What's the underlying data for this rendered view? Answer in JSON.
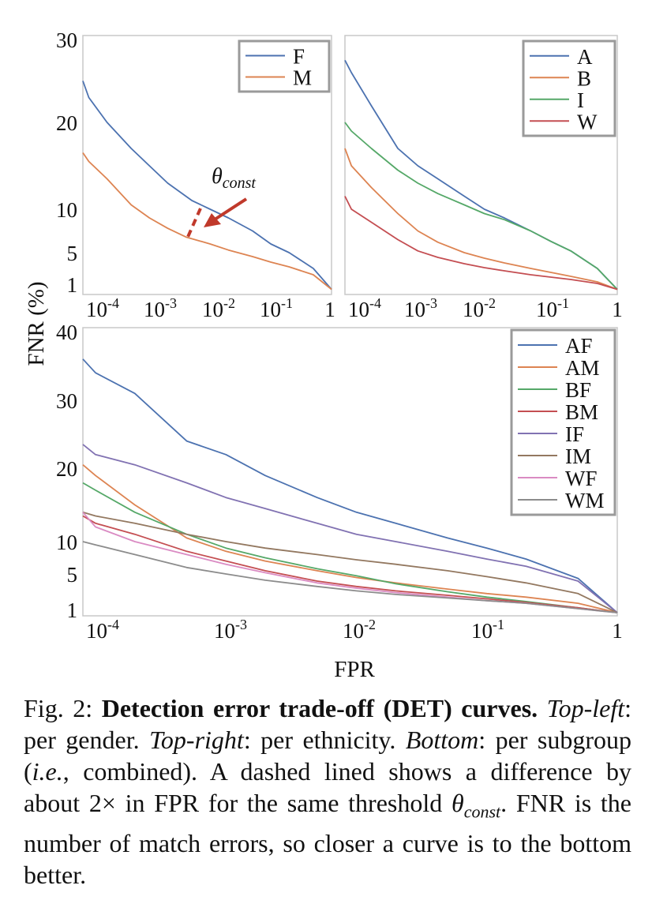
{
  "y_axis_label": "FNR (%)",
  "x_axis_label": "FPR",
  "annotation_theta": "θ",
  "annotation_sub": "const",
  "chart_data": [
    {
      "type": "line",
      "panel": "top-left",
      "xscale": "log",
      "xlim": [
        8e-05,
        1
      ],
      "ylim": [
        0,
        30
      ],
      "yticks": [
        1,
        5,
        10,
        20,
        30
      ],
      "xticks": [
        "10-4",
        "10-3",
        "10-2",
        "10-1",
        "1"
      ],
      "legend_position": "top-right",
      "series": [
        {
          "name": "F",
          "color": "#4c72b0",
          "x": [
            8e-05,
            0.0001,
            0.0002,
            0.0005,
            0.001,
            0.002,
            0.005,
            0.01,
            0.02,
            0.05,
            0.1,
            0.2,
            0.5,
            1
          ],
          "y": [
            25,
            23,
            20,
            17,
            15,
            13,
            11,
            10,
            9,
            7.5,
            6,
            5,
            3,
            0.5
          ]
        },
        {
          "name": "M",
          "color": "#dd8452",
          "x": [
            8e-05,
            0.0001,
            0.0002,
            0.0005,
            0.001,
            0.002,
            0.004,
            0.01,
            0.02,
            0.05,
            0.1,
            0.2,
            0.5,
            1
          ],
          "y": [
            16.5,
            15.5,
            13.5,
            10.5,
            9,
            7.8,
            6.8,
            6,
            5.3,
            4.5,
            3.8,
            3.2,
            2.2,
            0.5
          ]
        }
      ]
    },
    {
      "type": "line",
      "panel": "top-right",
      "xscale": "log",
      "xlim": [
        8e-05,
        1
      ],
      "ylim": [
        0,
        30
      ],
      "xticks": [
        "10-4",
        "10-3",
        "10-2",
        "10-1",
        "1"
      ],
      "legend_position": "top-right",
      "series": [
        {
          "name": "A",
          "color": "#4c72b0",
          "x": [
            8e-05,
            0.0001,
            0.0002,
            0.0005,
            0.001,
            0.002,
            0.005,
            0.01,
            0.02,
            0.05,
            0.1,
            0.2,
            0.5,
            1
          ],
          "y": [
            27.5,
            26,
            22,
            17,
            15,
            13.5,
            11.5,
            10,
            9,
            7.5,
            6.3,
            5.2,
            3,
            0.5
          ]
        },
        {
          "name": "B",
          "color": "#dd8452",
          "x": [
            8e-05,
            0.0001,
            0.0002,
            0.0005,
            0.001,
            0.002,
            0.005,
            0.01,
            0.02,
            0.05,
            0.1,
            0.2,
            0.5,
            1
          ],
          "y": [
            17,
            15,
            12.5,
            9.5,
            7.5,
            6.2,
            5,
            4.3,
            3.7,
            3,
            2.5,
            2,
            1.3,
            0.5
          ]
        },
        {
          "name": "I",
          "color": "#55a868",
          "x": [
            8e-05,
            0.0001,
            0.0002,
            0.0005,
            0.001,
            0.002,
            0.005,
            0.01,
            0.02,
            0.05,
            0.1,
            0.2,
            0.5,
            1
          ],
          "y": [
            20,
            19,
            17,
            14.5,
            13,
            11.8,
            10.5,
            9.5,
            8.8,
            7.5,
            6.3,
            5.2,
            3,
            0.5
          ]
        },
        {
          "name": "W",
          "color": "#c44e52",
          "x": [
            8e-05,
            0.0001,
            0.0002,
            0.0005,
            0.001,
            0.002,
            0.005,
            0.01,
            0.02,
            0.05,
            0.1,
            0.2,
            0.5,
            1
          ],
          "y": [
            11.5,
            10,
            8.5,
            6.5,
            5.2,
            4.4,
            3.6,
            3.1,
            2.7,
            2.2,
            1.9,
            1.6,
            1.1,
            0.5
          ]
        }
      ]
    },
    {
      "type": "line",
      "panel": "bottom",
      "xscale": "log",
      "xlim": [
        8e-05,
        1
      ],
      "ylim": [
        0,
        40
      ],
      "yticks": [
        1,
        5,
        10,
        20,
        30,
        40
      ],
      "xticks": [
        "10-4",
        "10-3",
        "10-2",
        "10-1",
        "1"
      ],
      "legend_position": "top-right",
      "series": [
        {
          "name": "AF",
          "color": "#4c72b0",
          "x": [
            8e-05,
            0.0001,
            0.0002,
            0.0005,
            0.001,
            0.002,
            0.005,
            0.01,
            0.02,
            0.05,
            0.1,
            0.2,
            0.5,
            1
          ],
          "y": [
            36,
            34,
            31,
            24,
            22,
            19,
            16,
            14,
            12.5,
            10.5,
            9,
            7.3,
            4.5,
            0.5
          ]
        },
        {
          "name": "AM",
          "color": "#dd8452",
          "x": [
            8e-05,
            0.0001,
            0.0002,
            0.0005,
            0.001,
            0.002,
            0.005,
            0.01,
            0.02,
            0.05,
            0.1,
            0.2,
            0.5,
            1
          ],
          "y": [
            20.5,
            19,
            15,
            10.5,
            8.5,
            7,
            5.5,
            4.6,
            4,
            3.3,
            2.8,
            2.4,
            1.7,
            0.5
          ]
        },
        {
          "name": "BF",
          "color": "#55a868",
          "x": [
            8e-05,
            0.0001,
            0.0002,
            0.0005,
            0.001,
            0.002,
            0.005,
            0.01,
            0.02,
            0.05,
            0.1,
            0.2,
            0.5,
            1
          ],
          "y": [
            18,
            17,
            14,
            11,
            9,
            7.5,
            5.8,
            4.8,
            3.9,
            3,
            2.4,
            1.9,
            1.2,
            0.5
          ]
        },
        {
          "name": "BM",
          "color": "#c44e52",
          "x": [
            8e-05,
            0.0001,
            0.0002,
            0.0005,
            0.001,
            0.002,
            0.005,
            0.01,
            0.02,
            0.05,
            0.1,
            0.2,
            0.5,
            1
          ],
          "y": [
            13.5,
            12.5,
            11,
            8.5,
            7,
            5.5,
            4.2,
            3.6,
            3.1,
            2.6,
            2.2,
            1.8,
            1.2,
            0.5
          ]
        },
        {
          "name": "IF",
          "color": "#8172b2",
          "x": [
            8e-05,
            0.0001,
            0.0002,
            0.0005,
            0.001,
            0.002,
            0.005,
            0.01,
            0.02,
            0.05,
            0.1,
            0.2,
            0.5,
            1
          ],
          "y": [
            23.5,
            22,
            20.5,
            18,
            16,
            14.5,
            12.5,
            11,
            10,
            8.5,
            7.3,
            6.2,
            4.2,
            0.5
          ]
        },
        {
          "name": "IM",
          "color": "#937860",
          "x": [
            8e-05,
            0.0001,
            0.0002,
            0.0005,
            0.001,
            0.002,
            0.005,
            0.01,
            0.02,
            0.05,
            0.1,
            0.2,
            0.5,
            1
          ],
          "y": [
            14,
            13.5,
            12.5,
            11,
            10,
            9,
            8,
            7.2,
            6.5,
            5.5,
            4.7,
            4,
            2.8,
            0.5
          ]
        },
        {
          "name": "WF",
          "color": "#da8bc3",
          "x": [
            8e-05,
            0.0001,
            0.0002,
            0.0005,
            0.001,
            0.002,
            0.005,
            0.01,
            0.02,
            0.05,
            0.1,
            0.2,
            0.5,
            1
          ],
          "y": [
            14,
            12,
            10,
            8,
            6.5,
            5.2,
            4,
            3.4,
            2.9,
            2.4,
            2,
            1.7,
            1.1,
            0.5
          ]
        },
        {
          "name": "WM",
          "color": "#8c8c8c",
          "x": [
            8e-05,
            0.0001,
            0.0002,
            0.0005,
            0.001,
            0.002,
            0.005,
            0.01,
            0.02,
            0.05,
            0.1,
            0.2,
            0.5,
            1
          ],
          "y": [
            10,
            9.5,
            8,
            6,
            5,
            4.3,
            3.6,
            3.1,
            2.7,
            2.3,
            2,
            1.7,
            1.1,
            0.5
          ]
        }
      ]
    }
  ],
  "caption": {
    "fig_label": "Fig. 2: ",
    "title": "Detection error trade-off (DET) curves.",
    "tl_label": "Top-left",
    "tl_text": ": per gender. ",
    "tr_label": "Top-right",
    "tr_text": ": per ethnicity. ",
    "bot_label": "Bottom",
    "bot_text1": ": per subgroup (",
    "ie": "i.e.",
    "bot_text2": ", combined). A dashed lined shows a difference by about 2× in FPR for the same threshold ",
    "theta": "θ",
    "theta_sub": "const",
    "rest": ". FNR is the number of match errors, so closer a curve is to the bottom better."
  }
}
